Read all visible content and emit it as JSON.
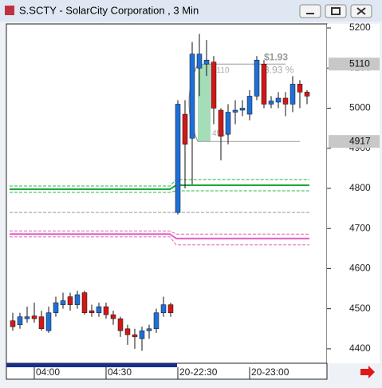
{
  "window": {
    "title": "S.SCTY - SolarCity Corporation , 3 Min"
  },
  "chart_data": {
    "type": "candlestick",
    "categories": [
      null,
      null,
      null,
      "04:00",
      null,
      null,
      null,
      null,
      null,
      null,
      null,
      null,
      null,
      "04:30",
      null,
      null,
      null,
      null,
      null,
      null,
      null,
      null,
      null,
      "20-22:30",
      null,
      null,
      null,
      null,
      null,
      null,
      null,
      null,
      null,
      "20-23:00",
      null,
      null,
      null,
      null,
      null,
      null,
      null,
      null
    ],
    "open": [
      4470,
      4460,
      4475,
      4482,
      4480,
      4445,
      4490,
      4510,
      4530,
      4510,
      4540,
      4495,
      4490,
      4505,
      4485,
      4475,
      4450,
      4435,
      4425,
      4445,
      4450,
      4490,
      4510,
      4740,
      4985,
      4925,
      5100,
      5110,
      5115,
      4995,
      4935,
      4990,
      4995,
      4985,
      5030,
      5110,
      5010,
      5015,
      5025,
      5010,
      5060,
      5040
    ],
    "high": [
      4490,
      4490,
      4505,
      4515,
      4495,
      4505,
      4530,
      4540,
      4540,
      4545,
      4545,
      4510,
      4515,
      4515,
      4495,
      4480,
      4460,
      4450,
      4455,
      4460,
      4500,
      4530,
      4515,
      5020,
      5020,
      5165,
      5185,
      5170,
      5130,
      5000,
      5010,
      5020,
      5020,
      5045,
      5130,
      5120,
      5030,
      5040,
      5040,
      5080,
      5070,
      5045
    ],
    "low": [
      4445,
      4450,
      4465,
      4465,
      4445,
      4440,
      4480,
      4500,
      4495,
      4500,
      4485,
      4480,
      4480,
      4475,
      4460,
      4430,
      4410,
      4400,
      4395,
      4425,
      4440,
      4480,
      4480,
      4735,
      4800,
      4810,
      5030,
      5080,
      4960,
      4870,
      4910,
      4960,
      4980,
      4970,
      5020,
      5000,
      5000,
      5000,
      4980,
      4990,
      5000,
      5010
    ],
    "close": [
      4455,
      4480,
      4480,
      4475,
      4450,
      4490,
      4515,
      4520,
      4510,
      4535,
      4490,
      4490,
      4505,
      4485,
      4475,
      4445,
      4435,
      4430,
      4445,
      4450,
      4490,
      4510,
      4490,
      5010,
      4910,
      5135,
      5135,
      5120,
      5000,
      4930,
      4990,
      4995,
      5000,
      5030,
      5120,
      5010,
      5018,
      5025,
      5010,
      5060,
      5040,
      5030
    ],
    "up_color": "#1f6fd6",
    "down_color": "#d01818",
    "ylim": [
      4364,
      5210
    ],
    "yticks": [
      4400,
      4500,
      4600,
      4700,
      4800,
      4900,
      5000,
      5100,
      5200
    ],
    "overlays": [
      {
        "color": "#2db84a",
        "dash": true,
        "values": [
          4806,
          4822
        ]
      },
      {
        "color": "#1aa83a",
        "dash": false,
        "values": [
          4798,
          4808
        ]
      },
      {
        "color": "#2db84a",
        "dash": true,
        "values": [
          4790,
          4794
        ]
      },
      {
        "color": "#9a9a9a",
        "dash": true,
        "values": [
          4740,
          4740
        ]
      },
      {
        "color": "#e060c0",
        "dash": true,
        "values": [
          4694,
          4686
        ]
      },
      {
        "color": "#e060c0",
        "dash": false,
        "values": [
          4686,
          4675
        ]
      },
      {
        "color": "#e060c0",
        "dash": true,
        "values": [
          4679,
          4659
        ]
      }
    ],
    "measure": {
      "high": 5110,
      "low": 4917,
      "change_label": "$1.93",
      "percent_label": "3.93 %"
    }
  }
}
